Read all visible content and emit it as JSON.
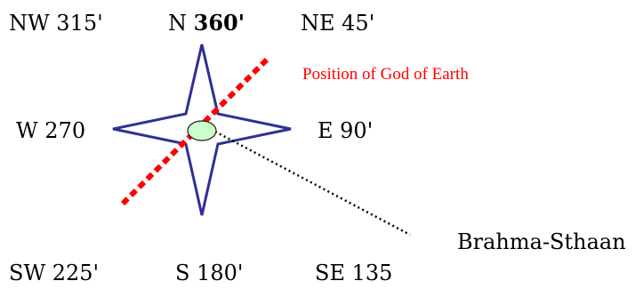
{
  "directions": {
    "nw": "NW 315'",
    "n_prefix": "N ",
    "n_value": "360'",
    "ne": "NE 45'",
    "w": "W 270",
    "e": "E 90'",
    "sw": "SW 225'",
    "s": "S 180'",
    "se": "SE 135"
  },
  "annotations": {
    "earth_god": "Position of God of Earth",
    "brahma": "Brahma-Sthaan"
  },
  "colors": {
    "star_outline": "#2e3192",
    "earth_line": "#ff0000",
    "center_fill": "#ccffcc",
    "center_stroke": "#1a1a1a",
    "earth_label": "#ff0000",
    "text": "#000000"
  },
  "icons": {
    "compass": "four-point-star-icon",
    "center": "ellipse-marker-icon"
  }
}
